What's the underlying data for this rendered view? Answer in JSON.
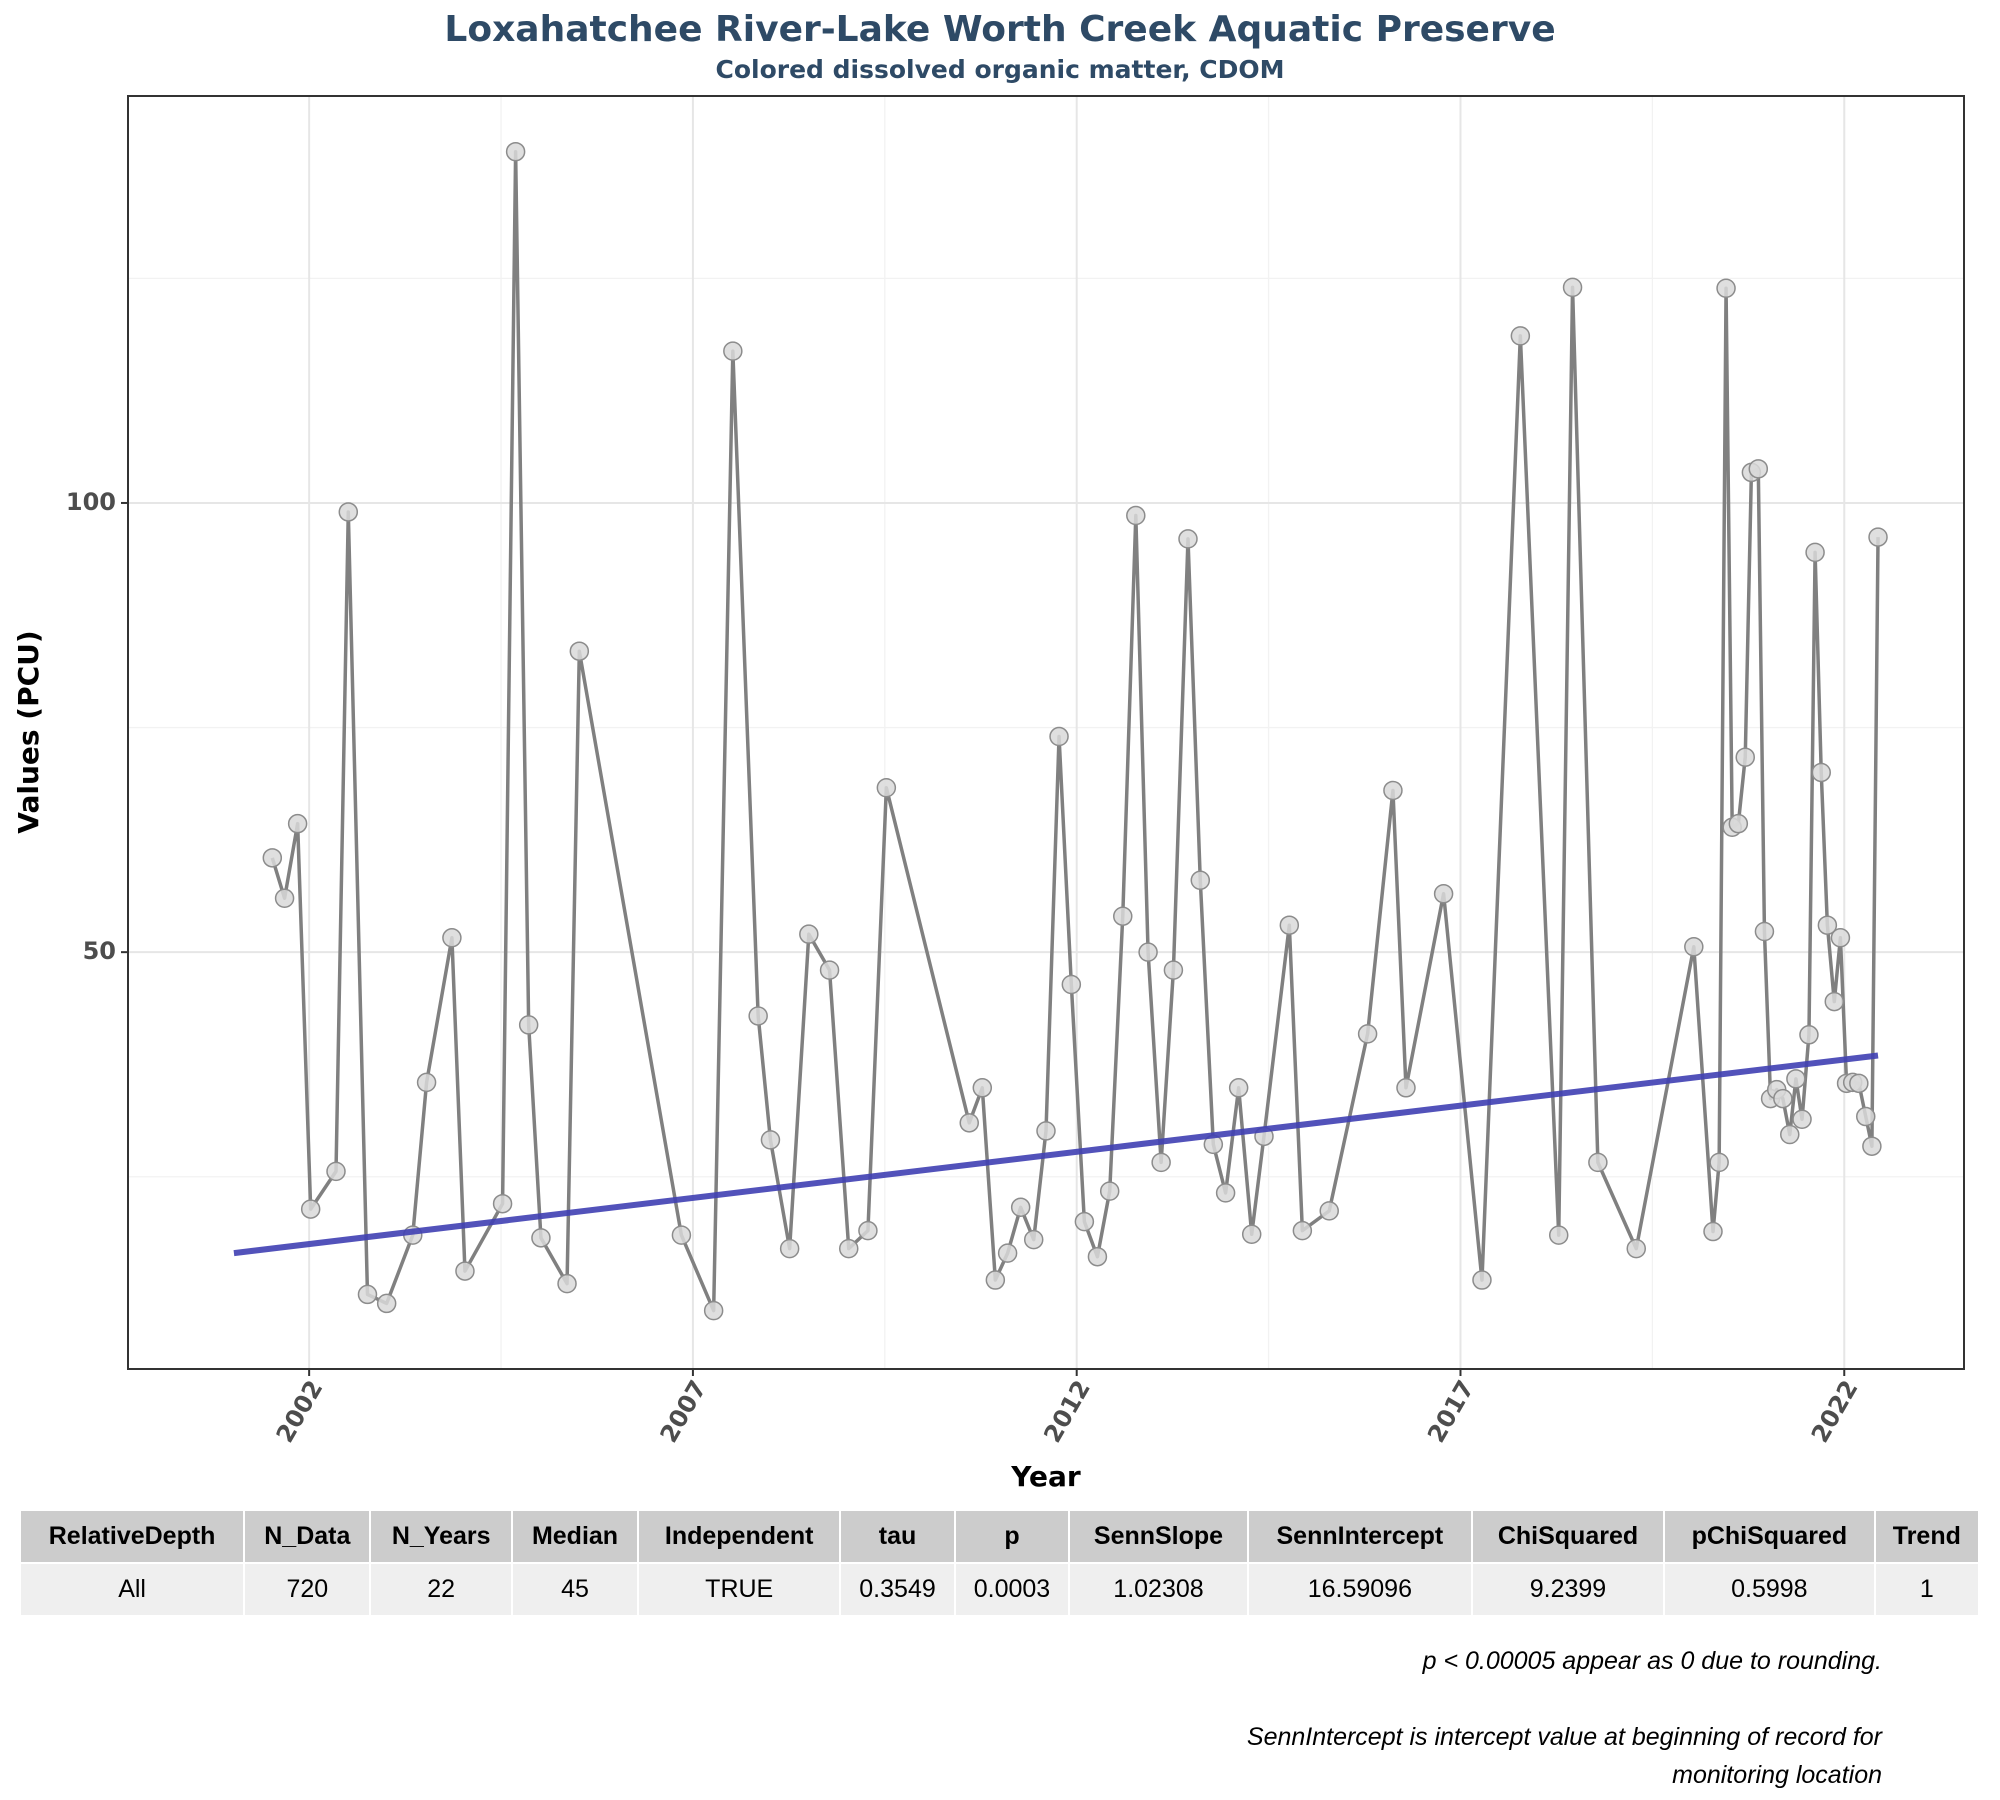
{
  "chart_data": {
    "type": "line",
    "title": "Loxahatchee River-Lake Worth Creek Aquatic Preserve",
    "subtitle": "Colored dissolved organic matter, CDOM",
    "x_label": "Year",
    "y_label": "Values (PCU)",
    "xlim": [
      1999.64,
      2023.56
    ],
    "ylim": [
      3.6,
      145.3
    ],
    "xticks": [
      2002,
      2007,
      2012,
      2017,
      2022
    ],
    "yticks": [
      50,
      100
    ],
    "minor_xticks": [
      2004.5,
      2009.5,
      2014.5,
      2019.5
    ],
    "minor_yticks": [
      25,
      75,
      125
    ],
    "grid": true,
    "x": [
      2001.52,
      2001.68,
      2001.85,
      2002.02,
      2002.35,
      2002.51,
      2002.76,
      2003.01,
      2003.35,
      2003.53,
      2003.86,
      2004.03,
      2004.52,
      2004.69,
      2004.86,
      2005.02,
      2005.36,
      2005.52,
      2006.85,
      2007.27,
      2007.52,
      2007.85,
      2008.01,
      2008.26,
      2008.51,
      2008.78,
      2009.03,
      2009.28,
      2009.52,
      2010.6,
      2010.77,
      2010.94,
      2011.1,
      2011.27,
      2011.44,
      2011.6,
      2011.77,
      2011.93,
      2012.1,
      2012.27,
      2012.43,
      2012.6,
      2012.77,
      2012.93,
      2013.1,
      2013.26,
      2013.45,
      2013.61,
      2013.78,
      2013.94,
      2014.11,
      2014.28,
      2014.44,
      2014.77,
      2014.94,
      2015.29,
      2015.79,
      2016.12,
      2016.29,
      2016.78,
      2017.28,
      2017.78,
      2018.28,
      2018.46,
      2018.79,
      2019.29,
      2020.04,
      2020.29,
      2020.37,
      2020.46,
      2020.54,
      2020.62,
      2020.71,
      2020.79,
      2020.88,
      2020.96,
      2021.04,
      2021.12,
      2021.2,
      2021.29,
      2021.37,
      2021.45,
      2021.54,
      2021.62,
      2021.7,
      2021.78,
      2021.87,
      2021.95,
      2022.03,
      2022.11,
      2022.19,
      2022.28,
      2022.36,
      2022.44
    ],
    "series": [
      {
        "color": "#808080",
        "values": [
          60.5,
          56.0,
          64.3,
          21.4,
          25.6,
          99.0,
          11.9,
          10.9,
          18.5,
          35.5,
          51.6,
          14.5,
          22.0,
          139.1,
          41.9,
          18.2,
          13.1,
          83.5,
          18.5,
          10.1,
          116.9,
          42.9,
          29.1,
          17.0,
          52.0,
          48.0,
          17.0,
          19.0,
          68.3,
          31.0,
          34.9,
          13.5,
          16.5,
          21.6,
          18.0,
          30.1,
          74.0,
          46.4,
          20.0,
          16.1,
          23.4,
          54.0,
          98.6,
          50.0,
          26.6,
          48.0,
          96.0,
          58.0,
          28.6,
          23.2,
          34.9,
          18.6,
          29.5,
          53.0,
          19.0,
          21.2,
          40.9,
          68.0,
          34.9,
          56.5,
          13.5,
          118.6,
          18.5,
          124.0,
          26.6,
          17.0,
          50.6,
          18.9,
          26.6,
          123.9,
          63.9,
          64.3,
          71.7,
          103.4,
          103.8,
          52.3,
          33.7,
          34.7,
          33.7,
          29.7,
          35.9,
          31.4,
          40.8,
          94.5,
          70.0,
          53.0,
          44.5,
          51.6,
          35.4,
          35.5,
          35.4,
          31.7,
          28.4,
          96.2
        ]
      }
    ],
    "trend": {
      "color": "#3f3fb3",
      "x": [
        2001.02,
        2022.44
      ],
      "values": [
        16.5,
        38.5
      ]
    }
  },
  "table": {
    "header": [
      "RelativeDepth",
      "N_Data",
      "N_Years",
      "Median",
      "Independent",
      "tau",
      "p",
      "SennSlope",
      "SennIntercept",
      "ChiSquared",
      "pChiSquared",
      "Trend"
    ],
    "rows": [
      [
        "All",
        "720",
        "22",
        "45",
        "TRUE",
        "0.3549",
        "0.0003",
        "1.02308",
        "16.59096",
        "9.2399",
        "0.5998",
        "1"
      ]
    ]
  },
  "notes": [
    "p < 0.00005 appear as 0 due to rounding.",
    "SennIntercept is intercept value at beginning of record for monitoring location"
  ]
}
